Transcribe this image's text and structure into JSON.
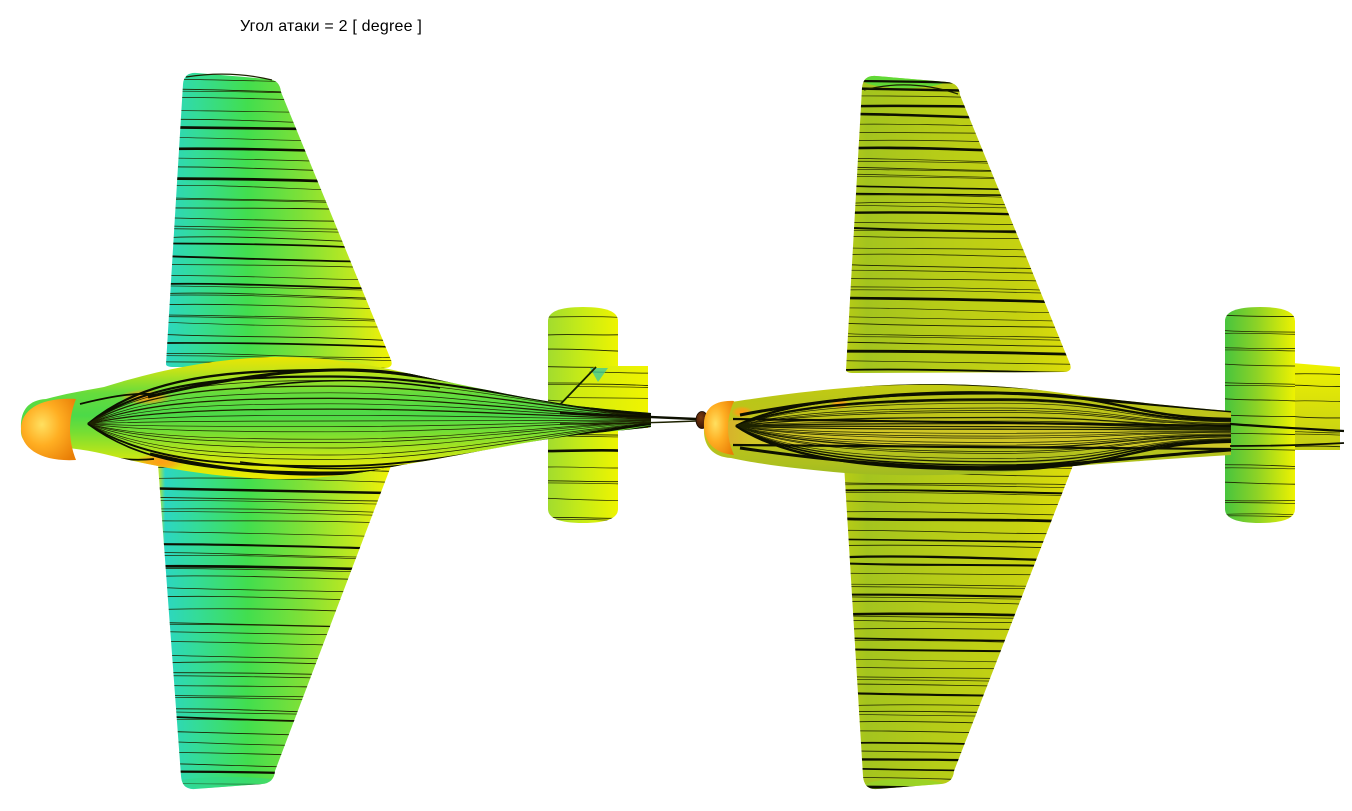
{
  "figure": {
    "title": "Угол атаки = 2 [ degree ]",
    "angle_of_attack_deg": 2,
    "colors": {
      "background": "#ffffff",
      "streamline": "#1d2200",
      "surface_cyan": "#2cd6c2",
      "surface_green": "#42de4e",
      "surface_yellow_green": "#a8e428",
      "surface_yellow": "#f2f400",
      "surface_olive": "#bcc81e",
      "surface_orange": "#ff9d14"
    }
  }
}
